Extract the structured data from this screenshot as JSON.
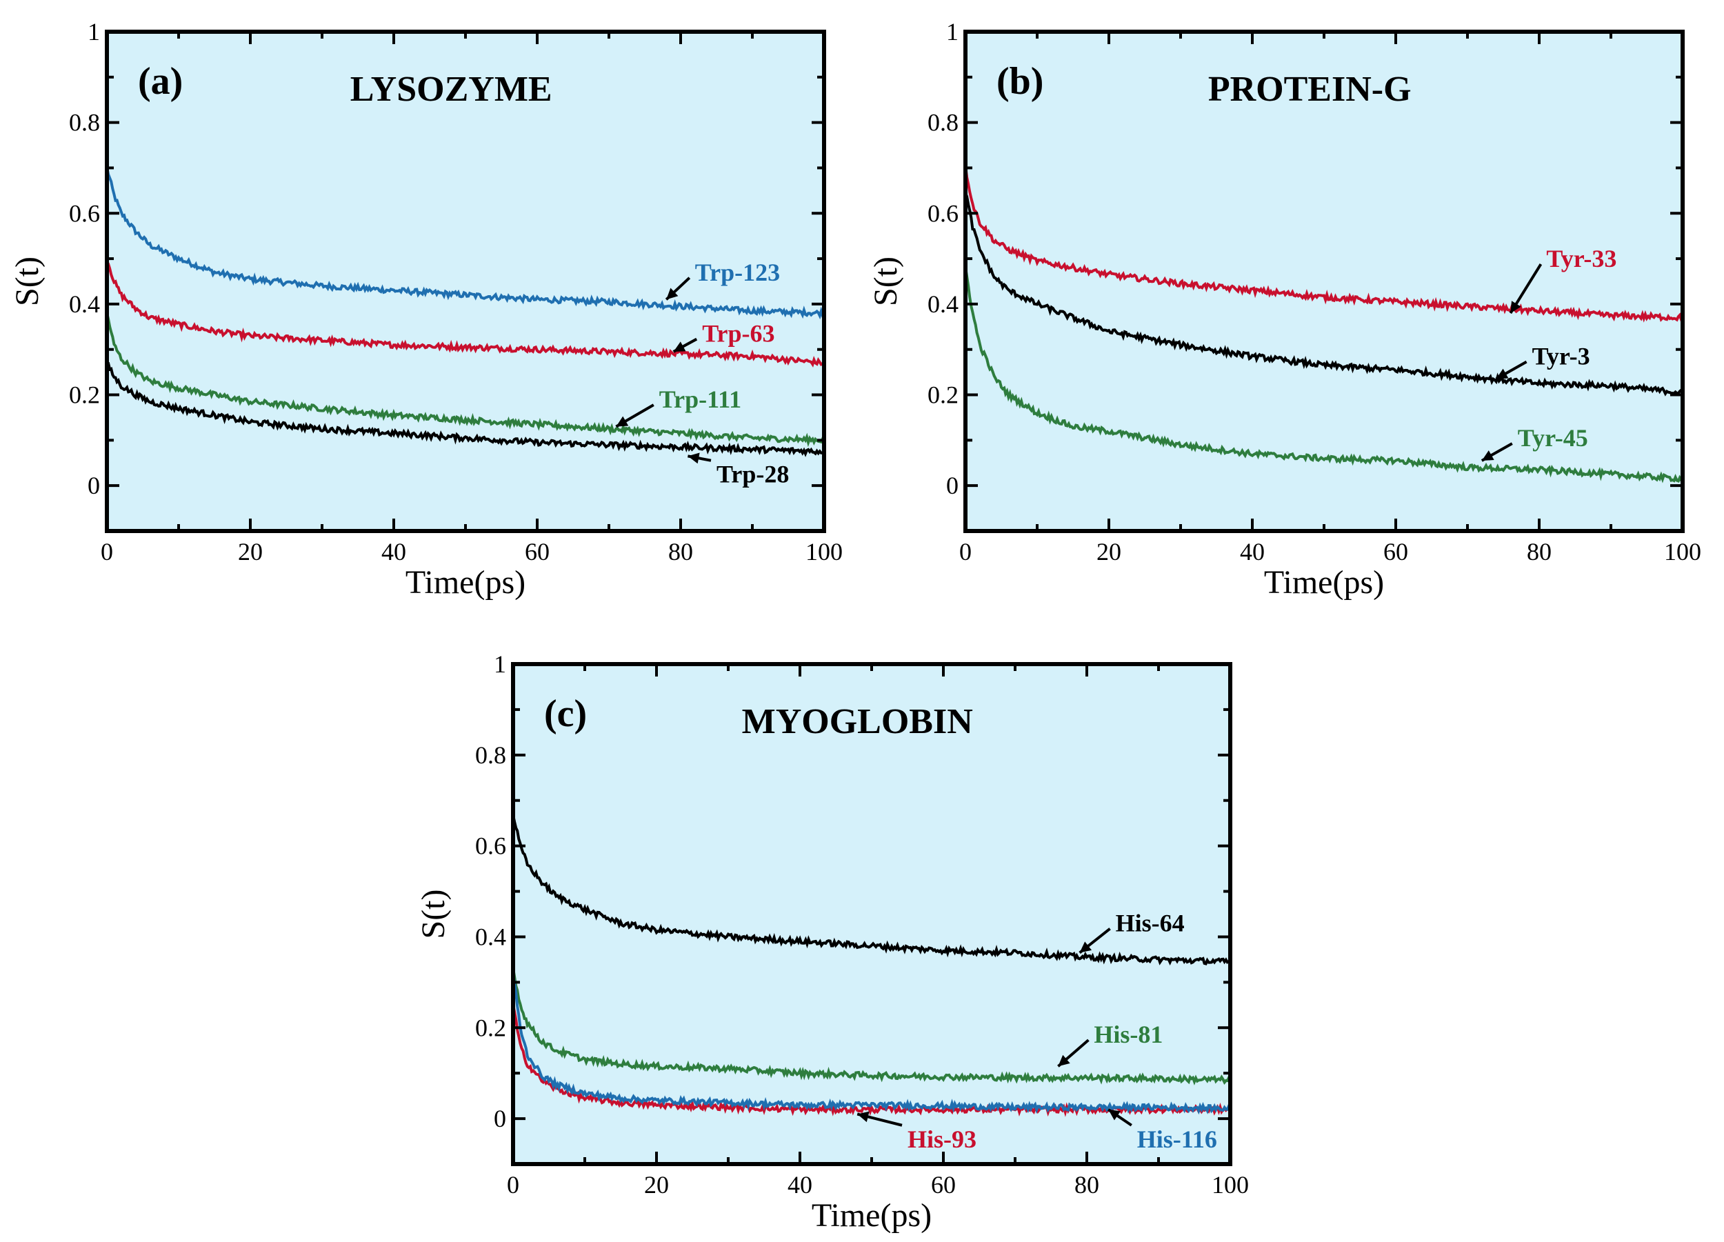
{
  "colors": {
    "background": "#d5f1fa",
    "black": "#000000",
    "blue": "#1f6fb0",
    "red": "#c8102e",
    "green": "#2e7d3e"
  },
  "chart_data": [
    {
      "type": "line",
      "panel_label": "(a)",
      "title": "LYSOZYME",
      "xlabel": "Time(ps)",
      "ylabel": "S(t)",
      "xlim": [
        0,
        100
      ],
      "ylim": [
        -0.1,
        1
      ],
      "x_ticks": [
        "0",
        "20",
        "40",
        "60",
        "80",
        "100"
      ],
      "y_ticks": [
        "0",
        "0.2",
        "0.4",
        "0.6",
        "0.8",
        "1"
      ],
      "grid": false,
      "series": [
        {
          "name": "Trp-123",
          "color": "blue",
          "x": [
            0,
            1,
            2,
            4,
            6,
            10,
            15,
            20,
            30,
            40,
            50,
            60,
            70,
            80,
            90,
            100
          ],
          "y": [
            0.7,
            0.64,
            0.6,
            0.56,
            0.53,
            0.5,
            0.47,
            0.455,
            0.44,
            0.43,
            0.42,
            0.41,
            0.405,
            0.395,
            0.385,
            0.38
          ],
          "label_at": [
            78,
            0.41
          ],
          "label_text_at": [
            82,
            0.47
          ]
        },
        {
          "name": "Trp-63",
          "color": "red",
          "x": [
            0,
            1,
            2,
            4,
            6,
            10,
            15,
            20,
            30,
            40,
            50,
            60,
            70,
            80,
            90,
            100
          ],
          "y": [
            0.5,
            0.45,
            0.42,
            0.39,
            0.37,
            0.355,
            0.34,
            0.33,
            0.32,
            0.31,
            0.305,
            0.3,
            0.295,
            0.29,
            0.285,
            0.27
          ],
          "label_at": [
            79,
            0.295
          ],
          "label_text_at": [
            83,
            0.335
          ]
        },
        {
          "name": "Trp-111",
          "color": "green",
          "x": [
            0,
            1,
            2,
            4,
            6,
            10,
            15,
            20,
            30,
            40,
            50,
            60,
            70,
            80,
            90,
            100
          ],
          "y": [
            0.38,
            0.31,
            0.28,
            0.25,
            0.23,
            0.215,
            0.2,
            0.185,
            0.17,
            0.155,
            0.145,
            0.135,
            0.125,
            0.115,
            0.105,
            0.1
          ],
          "label_at": [
            71,
            0.13
          ],
          "label_text_at": [
            77,
            0.19
          ]
        },
        {
          "name": "Trp-28",
          "color": "black",
          "x": [
            0,
            1,
            2,
            4,
            6,
            10,
            15,
            20,
            30,
            40,
            50,
            60,
            70,
            80,
            90,
            100
          ],
          "y": [
            0.27,
            0.24,
            0.22,
            0.2,
            0.185,
            0.17,
            0.155,
            0.14,
            0.125,
            0.115,
            0.105,
            0.095,
            0.09,
            0.085,
            0.08,
            0.075
          ],
          "label_at": [
            81,
            0.065
          ],
          "label_text_at": [
            85,
            0.025
          ]
        }
      ]
    },
    {
      "type": "line",
      "panel_label": "(b)",
      "title": "PROTEIN-G",
      "xlabel": "Time(ps)",
      "ylabel": "S(t)",
      "xlim": [
        0,
        100
      ],
      "ylim": [
        -0.1,
        1
      ],
      "x_ticks": [
        "0",
        "20",
        "40",
        "60",
        "80",
        "100"
      ],
      "y_ticks": [
        "0",
        "0.2",
        "0.4",
        "0.6",
        "0.8",
        "1"
      ],
      "grid": false,
      "series": [
        {
          "name": "Tyr-33",
          "color": "red",
          "x": [
            0,
            1,
            2,
            4,
            6,
            10,
            15,
            20,
            30,
            40,
            50,
            60,
            70,
            80,
            90,
            100
          ],
          "y": [
            0.7,
            0.62,
            0.58,
            0.54,
            0.52,
            0.495,
            0.48,
            0.465,
            0.445,
            0.43,
            0.415,
            0.405,
            0.395,
            0.385,
            0.375,
            0.37
          ],
          "label_at": [
            76,
            0.38
          ],
          "label_text_at": [
            81,
            0.5
          ]
        },
        {
          "name": "Tyr-3",
          "color": "black",
          "x": [
            0,
            1,
            2,
            4,
            6,
            10,
            15,
            20,
            30,
            40,
            50,
            60,
            70,
            80,
            90,
            100
          ],
          "y": [
            0.65,
            0.57,
            0.52,
            0.46,
            0.43,
            0.4,
            0.37,
            0.34,
            0.31,
            0.285,
            0.265,
            0.255,
            0.24,
            0.225,
            0.22,
            0.205
          ],
          "label_at": [
            74,
            0.235
          ],
          "label_text_at": [
            79,
            0.285
          ]
        },
        {
          "name": "Tyr-45",
          "color": "green",
          "x": [
            0,
            1,
            2,
            4,
            6,
            10,
            15,
            20,
            30,
            40,
            50,
            60,
            70,
            80,
            90,
            100
          ],
          "y": [
            0.48,
            0.38,
            0.31,
            0.24,
            0.2,
            0.16,
            0.13,
            0.12,
            0.09,
            0.07,
            0.06,
            0.055,
            0.04,
            0.035,
            0.025,
            0.015
          ],
          "label_at": [
            72,
            0.055
          ],
          "label_text_at": [
            77,
            0.105
          ]
        }
      ]
    },
    {
      "type": "line",
      "panel_label": "(c)",
      "title": "MYOGLOBIN",
      "xlabel": "Time(ps)",
      "ylabel": "S(t)",
      "xlim": [
        0,
        100
      ],
      "ylim": [
        -0.1,
        1
      ],
      "x_ticks": [
        "0",
        "20",
        "40",
        "60",
        "80",
        "100"
      ],
      "y_ticks": [
        "0",
        "0.2",
        "0.4",
        "0.6",
        "0.8",
        "1"
      ],
      "grid": false,
      "series": [
        {
          "name": "His-64",
          "color": "black",
          "x": [
            0,
            1,
            2,
            4,
            6,
            10,
            15,
            20,
            30,
            40,
            50,
            60,
            70,
            80,
            90,
            100
          ],
          "y": [
            0.67,
            0.6,
            0.56,
            0.52,
            0.49,
            0.46,
            0.43,
            0.415,
            0.4,
            0.39,
            0.38,
            0.37,
            0.365,
            0.355,
            0.35,
            0.345
          ],
          "label_at": [
            79,
            0.365
          ],
          "label_text_at": [
            84,
            0.43
          ]
        },
        {
          "name": "His-81",
          "color": "green",
          "x": [
            0,
            1,
            2,
            4,
            6,
            10,
            15,
            20,
            30,
            40,
            50,
            60,
            70,
            80,
            90,
            100
          ],
          "y": [
            0.33,
            0.25,
            0.21,
            0.17,
            0.15,
            0.13,
            0.12,
            0.115,
            0.11,
            0.1,
            0.095,
            0.092,
            0.09,
            0.09,
            0.088,
            0.085
          ],
          "label_at": [
            76,
            0.115
          ],
          "label_text_at": [
            81,
            0.185
          ]
        },
        {
          "name": "His-93",
          "color": "red",
          "x": [
            0,
            1,
            2,
            4,
            6,
            10,
            15,
            20,
            30,
            40,
            50,
            60,
            70,
            80,
            90,
            100
          ],
          "y": [
            0.25,
            0.16,
            0.12,
            0.085,
            0.065,
            0.045,
            0.035,
            0.03,
            0.025,
            0.02,
            0.02,
            0.02,
            0.02,
            0.02,
            0.02,
            0.02
          ],
          "label_at": [
            48,
            0.01
          ],
          "label_text_at": [
            55,
            -0.045
          ]
        },
        {
          "name": "His-116",
          "color": "blue",
          "x": [
            0,
            1,
            2,
            4,
            6,
            10,
            15,
            20,
            30,
            40,
            50,
            60,
            70,
            80,
            90,
            100
          ],
          "y": [
            0.32,
            0.2,
            0.14,
            0.095,
            0.075,
            0.055,
            0.045,
            0.04,
            0.035,
            0.03,
            0.03,
            0.028,
            0.025,
            0.025,
            0.025,
            0.022
          ],
          "label_at": [
            83,
            0.02
          ],
          "label_text_at": [
            87,
            -0.045
          ]
        }
      ]
    }
  ]
}
